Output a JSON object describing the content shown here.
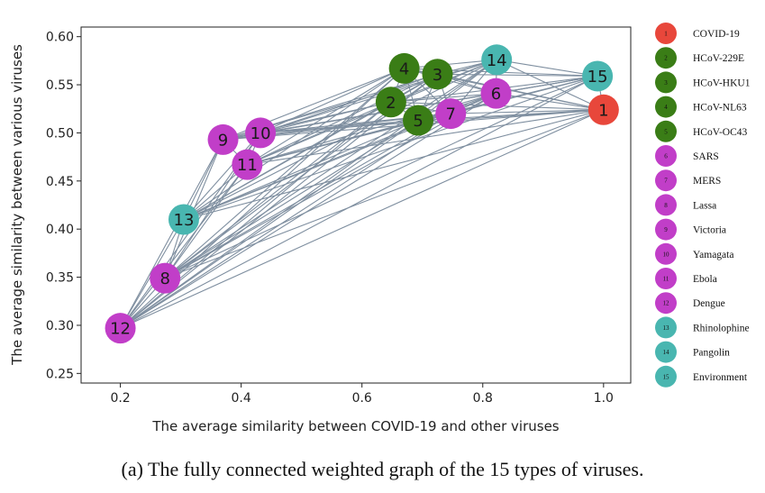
{
  "chart_data": {
    "type": "scatter",
    "xlabel": "The average similarity between COVID-19 and other viruses",
    "ylabel": "The average similarity between various viruses",
    "xlim": [
      0.135,
      1.045
    ],
    "ylim": [
      0.24,
      0.61
    ],
    "xticks": [
      0.2,
      0.4,
      0.6,
      0.8,
      1.0
    ],
    "xtick_labels": [
      "0.2",
      "0.4",
      "0.6",
      "0.8",
      "1.0"
    ],
    "yticks": [
      0.25,
      0.3,
      0.35,
      0.4,
      0.45,
      0.5,
      0.55,
      0.6
    ],
    "ytick_labels": [
      "0.25",
      "0.30",
      "0.35",
      "0.40",
      "0.45",
      "0.50",
      "0.55",
      "0.60"
    ],
    "grid": false,
    "edges": "all pairs (fully connected)",
    "edge_color": "#7f8fa0",
    "legend_position": "right, outside plot",
    "nodes": [
      {
        "id": "1",
        "name": "COVID-19",
        "x": 1.0,
        "y": 0.524,
        "color": "#e8473b"
      },
      {
        "id": "2",
        "name": "HCoV-229E",
        "x": 0.648,
        "y": 0.532,
        "color": "#3a7d16"
      },
      {
        "id": "3",
        "name": "HCoV-HKU1",
        "x": 0.725,
        "y": 0.561,
        "color": "#3a7d16"
      },
      {
        "id": "4",
        "name": "HCoV-NL63",
        "x": 0.67,
        "y": 0.567,
        "color": "#3a7d16"
      },
      {
        "id": "5",
        "name": "HCoV-OC43",
        "x": 0.693,
        "y": 0.513,
        "color": "#3a7d16"
      },
      {
        "id": "6",
        "name": "SARS",
        "x": 0.822,
        "y": 0.541,
        "color": "#c13ec8"
      },
      {
        "id": "7",
        "name": "MERS",
        "x": 0.747,
        "y": 0.52,
        "color": "#c13ec8"
      },
      {
        "id": "8",
        "name": "Lassa",
        "x": 0.274,
        "y": 0.349,
        "color": "#c13ec8"
      },
      {
        "id": "9",
        "name": "Victoria",
        "x": 0.37,
        "y": 0.493,
        "color": "#c13ec8"
      },
      {
        "id": "10",
        "name": "Yamagata",
        "x": 0.432,
        "y": 0.5,
        "color": "#c13ec8"
      },
      {
        "id": "11",
        "name": "Ebola",
        "x": 0.41,
        "y": 0.467,
        "color": "#c13ec8"
      },
      {
        "id": "12",
        "name": "Dengue",
        "x": 0.2,
        "y": 0.297,
        "color": "#c13ec8"
      },
      {
        "id": "13",
        "name": "Rhinolophine",
        "x": 0.305,
        "y": 0.41,
        "color": "#49b6b0"
      },
      {
        "id": "14",
        "name": "Pangolin",
        "x": 0.823,
        "y": 0.576,
        "color": "#49b6b0"
      },
      {
        "id": "15",
        "name": "Environment",
        "x": 0.99,
        "y": 0.559,
        "color": "#49b6b0"
      }
    ]
  },
  "caption": "(a) The fully connected weighted graph of the 15 types of viruses."
}
